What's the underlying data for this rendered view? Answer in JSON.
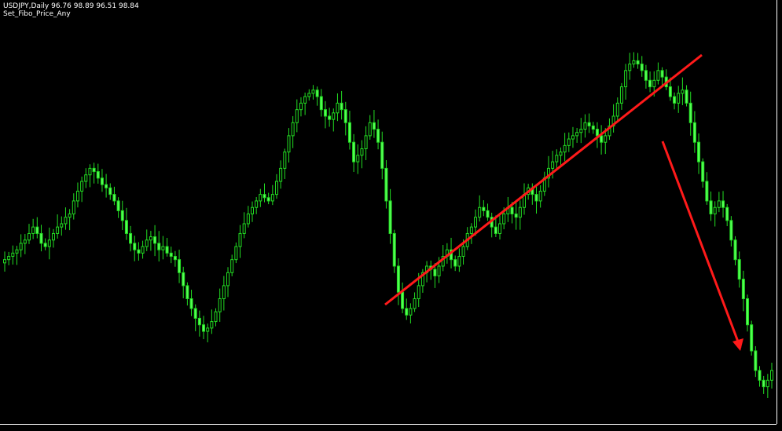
{
  "header": {
    "symbol_line": "USDJPY,Daily  96.76 98.89 96.51 98.84",
    "indicator_label": "Set_Fibo_Price_Any"
  },
  "colors": {
    "background": "#000000",
    "candle": "#22dd22",
    "candle_body": "#55ff55",
    "trendline": "#ff1a1a",
    "axis": "#ffffff"
  },
  "chart_data": {
    "type": "candlestick",
    "symbol": "USDJPY",
    "timeframe": "Daily",
    "last_bar": {
      "open": 96.76,
      "high": 98.89,
      "low": 96.51,
      "close": 98.84
    },
    "closes": [
      0.42,
      0.43,
      0.44,
      0.45,
      0.47,
      0.48,
      0.5,
      0.52,
      0.5,
      0.47,
      0.46,
      0.48,
      0.5,
      0.52,
      0.53,
      0.55,
      0.56,
      0.6,
      0.63,
      0.66,
      0.68,
      0.7,
      0.69,
      0.67,
      0.65,
      0.64,
      0.62,
      0.6,
      0.57,
      0.54,
      0.5,
      0.47,
      0.45,
      0.44,
      0.46,
      0.48,
      0.49,
      0.47,
      0.45,
      0.46,
      0.44,
      0.43,
      0.42,
      0.38,
      0.34,
      0.3,
      0.27,
      0.24,
      0.22,
      0.2,
      0.21,
      0.23,
      0.26,
      0.3,
      0.34,
      0.38,
      0.42,
      0.46,
      0.5,
      0.53,
      0.56,
      0.58,
      0.6,
      0.62,
      0.61,
      0.6,
      0.62,
      0.66,
      0.7,
      0.75,
      0.8,
      0.84,
      0.88,
      0.9,
      0.92,
      0.93,
      0.94,
      0.92,
      0.88,
      0.86,
      0.85,
      0.87,
      0.9,
      0.88,
      0.84,
      0.78,
      0.72,
      0.74,
      0.76,
      0.8,
      0.84,
      0.82,
      0.78,
      0.7,
      0.6,
      0.5,
      0.4,
      0.32,
      0.27,
      0.25,
      0.27,
      0.3,
      0.34,
      0.38,
      0.4,
      0.39,
      0.37,
      0.4,
      0.43,
      0.45,
      0.42,
      0.4,
      0.43,
      0.46,
      0.5,
      0.52,
      0.55,
      0.58,
      0.57,
      0.55,
      0.52,
      0.5,
      0.53,
      0.56,
      0.58,
      0.56,
      0.55,
      0.58,
      0.62,
      0.64,
      0.62,
      0.6,
      0.63,
      0.67,
      0.7,
      0.72,
      0.74,
      0.75,
      0.77,
      0.79,
      0.8,
      0.81,
      0.82,
      0.84,
      0.83,
      0.82,
      0.8,
      0.78,
      0.8,
      0.83,
      0.86,
      0.9,
      0.95,
      1.0,
      1.02,
      1.03,
      1.02,
      1.0,
      0.97,
      0.95,
      0.97,
      1.0,
      0.98,
      0.95,
      0.92,
      0.9,
      0.93,
      0.94,
      0.9,
      0.84,
      0.78,
      0.72,
      0.66,
      0.6,
      0.56,
      0.58,
      0.6,
      0.58,
      0.54,
      0.48,
      0.42,
      0.36,
      0.3,
      0.22,
      0.14,
      0.08,
      0.05,
      0.03,
      0.05,
      0.08
    ],
    "trendlines": [
      {
        "from": [
          0.131,
          0.2877
        ],
        "to": [
          0.355,
          0.5547
        ]
      },
      {
        "from": [
          0.355,
          0.5547
        ],
        "to": [
          0.4065,
          0.4463
        ],
        "arrow": true
      }
    ]
  }
}
